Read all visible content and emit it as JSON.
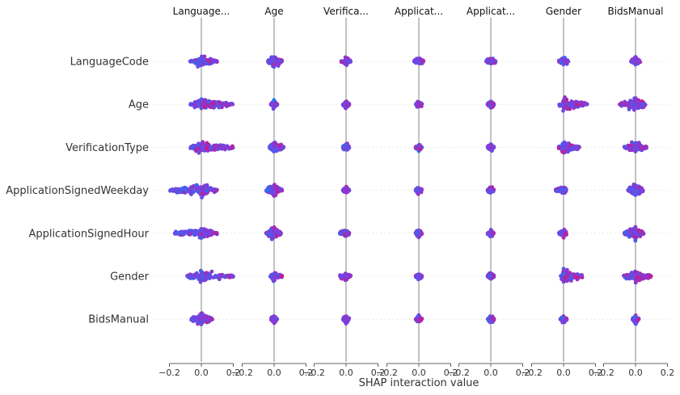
{
  "chart_data": {
    "type": "scatter",
    "subtype": "shap-interaction-beeswarm-grid",
    "column_titles": [
      "Language...",
      "Age",
      "Verifica...",
      "Applicat...",
      "Applicat...",
      "Gender",
      "BidsManual"
    ],
    "row_labels": [
      "LanguageCode",
      "Age",
      "VerificationType",
      "ApplicationSignedWeekday",
      "ApplicationSignedHour",
      "Gender",
      "BidsManual"
    ],
    "xlabel": "SHAP interaction value",
    "xlim": [
      -0.2,
      0.2
    ],
    "xticks": [
      -0.2,
      0.0,
      0.2
    ],
    "xtick_labels": [
      "−0.2",
      "0.0",
      "0.2"
    ],
    "row_gridlines": true,
    "colors": {
      "low": "#008afb",
      "mid": "#7b3fe0",
      "high": "#ff0052",
      "zero_line": "#999999",
      "grid": "#dddddd"
    },
    "approx_spread": [
      [
        [
          -0.07,
          0.1
        ],
        [
          -0.04,
          0.05
        ],
        [
          -0.03,
          0.03
        ],
        [
          -0.03,
          0.03
        ],
        [
          -0.03,
          0.03
        ],
        [
          -0.03,
          0.03
        ],
        [
          -0.03,
          0.03
        ]
      ],
      [
        [
          -0.07,
          0.2
        ],
        [
          -0.02,
          0.02
        ],
        [
          -0.02,
          0.02
        ],
        [
          -0.02,
          0.02
        ],
        [
          -0.02,
          0.02
        ],
        [
          -0.03,
          0.15
        ],
        [
          -0.1,
          0.08
        ]
      ],
      [
        [
          -0.07,
          0.2
        ],
        [
          -0.03,
          0.06
        ],
        [
          -0.02,
          0.02
        ],
        [
          -0.02,
          0.02
        ],
        [
          -0.02,
          0.02
        ],
        [
          -0.03,
          0.1
        ],
        [
          -0.07,
          0.07
        ]
      ],
      [
        [
          -0.2,
          0.1
        ],
        [
          -0.05,
          0.05
        ],
        [
          -0.02,
          0.02
        ],
        [
          -0.02,
          0.02
        ],
        [
          -0.02,
          0.02
        ],
        [
          -0.05,
          0.02
        ],
        [
          -0.05,
          0.05
        ]
      ],
      [
        [
          -0.17,
          0.1
        ],
        [
          -0.05,
          0.05
        ],
        [
          -0.04,
          0.02
        ],
        [
          -0.02,
          0.02
        ],
        [
          -0.02,
          0.02
        ],
        [
          -0.03,
          0.02
        ],
        [
          -0.07,
          0.05
        ]
      ],
      [
        [
          -0.1,
          0.2
        ],
        [
          -0.03,
          0.05
        ],
        [
          -0.04,
          0.03
        ],
        [
          -0.02,
          0.02
        ],
        [
          -0.02,
          0.02
        ],
        [
          -0.02,
          0.12
        ],
        [
          -0.08,
          0.1
        ]
      ],
      [
        [
          -0.07,
          0.07
        ],
        [
          -0.02,
          0.02
        ],
        [
          -0.02,
          0.02
        ],
        [
          -0.02,
          0.02
        ],
        [
          -0.02,
          0.02
        ],
        [
          -0.02,
          0.02
        ],
        [
          -0.02,
          0.02
        ]
      ]
    ]
  }
}
